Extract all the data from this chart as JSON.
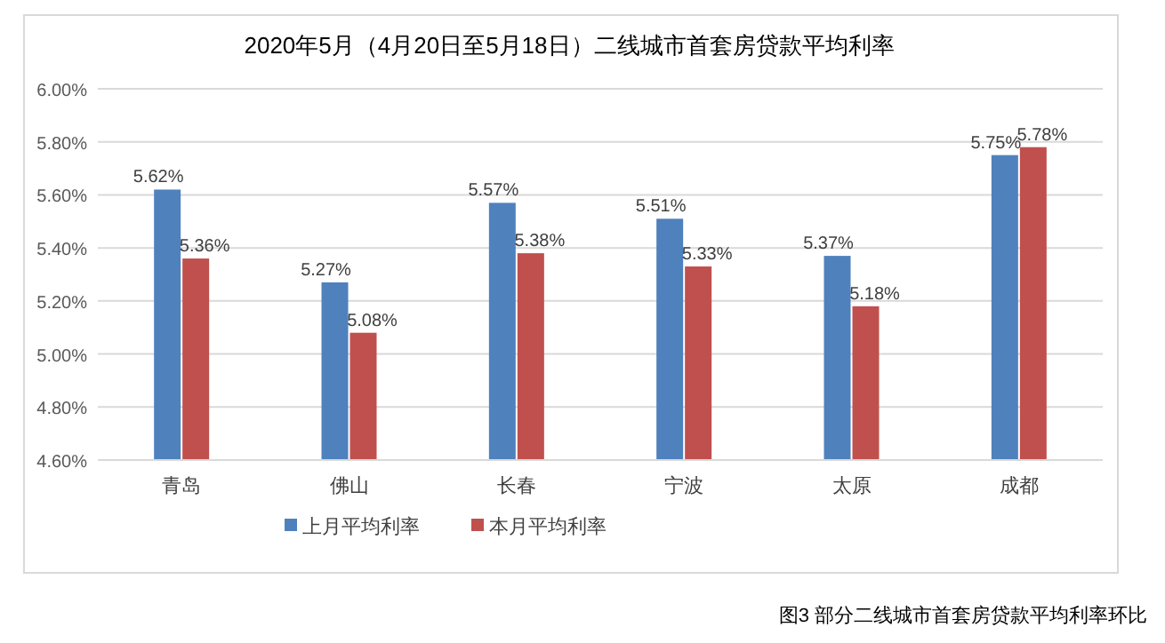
{
  "chart_data": {
    "type": "bar",
    "title": "2020年5月（4月20日至5月18日）二线城市首套房贷款平均利率",
    "categories": [
      "青岛",
      "佛山",
      "长春",
      "宁波",
      "太原",
      "成都"
    ],
    "series": [
      {
        "name": "上月平均利率",
        "color": "#4f81bd",
        "values": [
          5.62,
          5.27,
          5.57,
          5.51,
          5.37,
          5.75
        ],
        "value_labels": [
          "5.62%",
          "5.27%",
          "5.57%",
          "5.51%",
          "5.37%",
          "5.75%"
        ]
      },
      {
        "name": "本月平均利率",
        "color": "#c0504d",
        "values": [
          5.36,
          5.08,
          5.38,
          5.33,
          5.18,
          5.78
        ],
        "value_labels": [
          "5.36%",
          "5.08%",
          "5.38%",
          "5.33%",
          "5.18%",
          "5.78%"
        ]
      }
    ],
    "ylim": [
      4.6,
      6.0
    ],
    "yticks": [
      {
        "value": 4.6,
        "label": "4.60%"
      },
      {
        "value": 4.8,
        "label": "4.80%"
      },
      {
        "value": 5.0,
        "label": "5.00%"
      },
      {
        "value": 5.2,
        "label": "5.20%"
      },
      {
        "value": 5.4,
        "label": "5.40%"
      },
      {
        "value": 5.6,
        "label": "5.60%"
      },
      {
        "value": 5.8,
        "label": "5.80%"
      },
      {
        "value": 6.0,
        "label": "6.00%"
      }
    ],
    "grid": "y",
    "legend": "bottom",
    "annotations": [
      "图3 部分二线城市首套房贷款平均利率环比"
    ]
  }
}
